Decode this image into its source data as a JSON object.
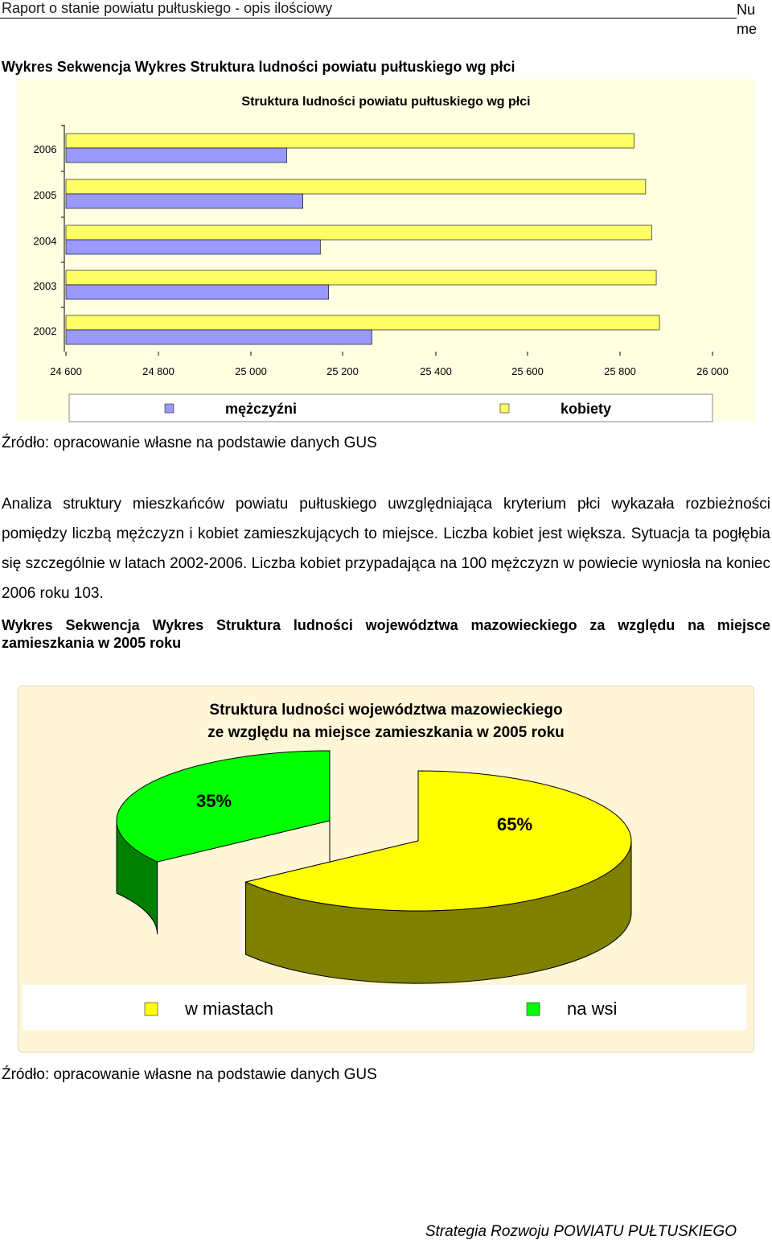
{
  "header": {
    "title": "Raport o stanie powiatu pułtuskiego - opis ilościowy",
    "page_number": "Nu me"
  },
  "caption1": "Wykres Sekwencja Wykres Struktura ludności powiatu pułtuskiego wg płci",
  "source1": "Źródło: opracowanie własne na podstawie danych GUS",
  "paragraph": "Analiza struktury mieszkańców powiatu pułtuskiego uwzględniająca kryterium płci wykazała rozbieżności pomiędzy liczbą mężczyzn i kobiet zamieszkujących to miejsce. Liczba kobiet jest większa. Sytuacja ta pogłębia się szczególnie w latach 2002-2006. Liczba kobiet przypadająca na 100 mężczyzn w powiecie wyniosła na koniec 2006 roku 103.",
  "caption2": "Wykres Sekwencja Wykres Struktura ludności województwa mazowieckiego za względu na miejsce zamieszkania w 2005 roku",
  "source2": "Źródło: opracowanie własne na podstawie danych GUS",
  "footer": "Strategia Rozwoju POWIATU PUŁTUSKIEGO",
  "colors": {
    "men": "#9999FF",
    "women": "#FFFF66",
    "city": "#FFFF00",
    "village": "#00FF00"
  },
  "chart_data": [
    {
      "type": "bar",
      "orientation": "horizontal",
      "title": "Struktura ludności powiatu pułtuskiego wg płci",
      "categories": [
        "2006",
        "2005",
        "2004",
        "2003",
        "2002"
      ],
      "series": [
        {
          "name": "mężczyźni",
          "values": [
            25080,
            25115,
            25153,
            25171,
            25265
          ]
        },
        {
          "name": "kobiety",
          "values": [
            25835,
            25860,
            25873,
            25883,
            25890
          ]
        }
      ],
      "x_ticks": [
        "24 600",
        "24 800",
        "25 000",
        "25 200",
        "25 400",
        "25 600",
        "25 800",
        "26 000"
      ],
      "xlim": [
        24600,
        26000
      ],
      "legend": "bottom"
    },
    {
      "type": "pie",
      "title_lines": [
        "Struktura ludności województwa mazowieckiego",
        "ze względu na miejsce zamieszkania w 2005 roku"
      ],
      "labels": [
        "w miastach",
        "na wsi"
      ],
      "values": [
        65,
        35
      ],
      "value_labels": [
        "65%",
        "35%"
      ],
      "legend": "bottom"
    }
  ]
}
